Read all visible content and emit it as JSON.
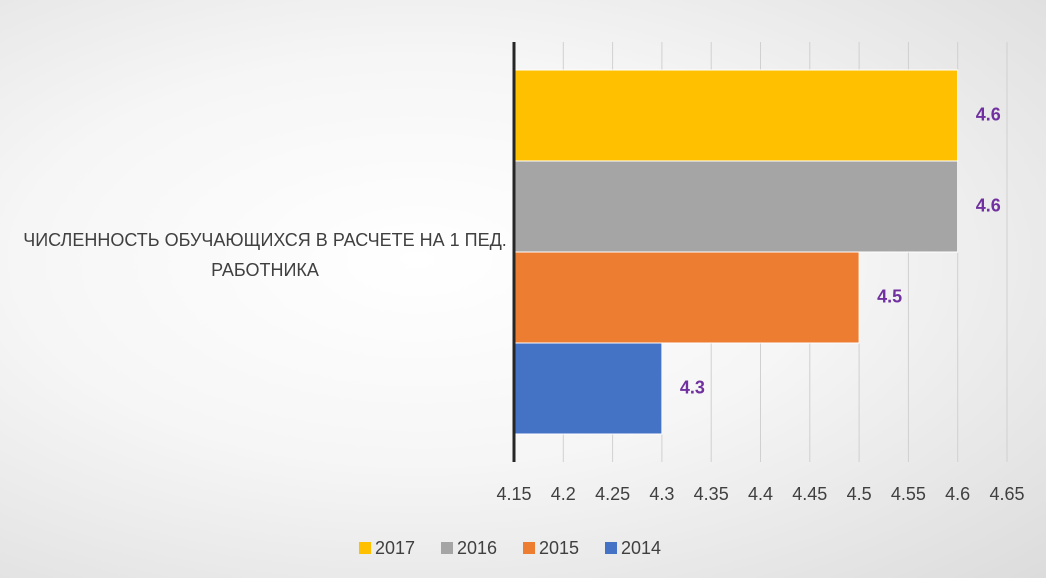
{
  "chart_data": {
    "type": "bar",
    "orientation": "horizontal",
    "categories": [
      "ЧИСЛЕННОСТЬ ОБУЧАЮЩИХСЯ В РАСЧЕТЕ НА 1 ПЕД. РАБОТНИКА"
    ],
    "series": [
      {
        "name": "2017",
        "color": "#ffc000",
        "values": [
          4.6
        ]
      },
      {
        "name": "2016",
        "color": "#a5a5a5",
        "values": [
          4.6
        ]
      },
      {
        "name": "2015",
        "color": "#ed7d31",
        "values": [
          4.5
        ]
      },
      {
        "name": "2014",
        "color": "#4472c4",
        "values": [
          4.3
        ]
      }
    ],
    "xlim": [
      4.15,
      4.65
    ],
    "xticks": [
      4.15,
      4.2,
      4.25,
      4.3,
      4.35,
      4.4,
      4.45,
      4.5,
      4.55,
      4.6,
      4.65
    ],
    "grid": true,
    "legend": "bottom",
    "label_color": "#7030a0"
  }
}
